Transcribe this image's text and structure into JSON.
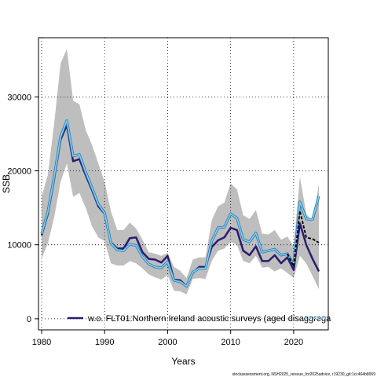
{
  "chart_data": {
    "type": "line",
    "xlabel": "Years",
    "ylabel": "SSB",
    "xlim": [
      1979.5,
      2025.5
    ],
    "ylim": [
      -1500,
      38000
    ],
    "x_ticks": [
      1980,
      1990,
      2000,
      2010,
      2020
    ],
    "y_ticks": [
      0,
      10000,
      20000,
      30000
    ],
    "grid": true,
    "legend_position": "bottom",
    "footer": "stockassessment.org, NSH2025_reissue_for2025advice, r19230_git:1cc464b8069",
    "band": {
      "color": "#bebebe",
      "x": [
        1980,
        1981,
        1982,
        1983,
        1984,
        1985,
        1986,
        1987,
        1988,
        1989,
        1990,
        1991,
        1992,
        1993,
        1994,
        1995,
        1996,
        1997,
        1998,
        1999,
        2000,
        2001,
        2002,
        2003,
        2004,
        2005,
        2006,
        2007,
        2008,
        2009,
        2010,
        2011,
        2012,
        2013,
        2014,
        2015,
        2016,
        2017,
        2018,
        2019,
        2020,
        2021,
        2022,
        2023,
        2024
      ],
      "lower": [
        8200,
        10200,
        13800,
        18500,
        21000,
        16500,
        17000,
        15000,
        12500,
        11000,
        10500,
        7500,
        7200,
        7200,
        7800,
        7500,
        6800,
        6000,
        5600,
        5300,
        5900,
        3800,
        3700,
        3300,
        5400,
        5500,
        5400,
        7800,
        9200,
        9500,
        10400,
        10000,
        7800,
        7500,
        8500,
        6900,
        7000,
        6400,
        6800,
        6200,
        5500,
        8500,
        7500,
        5800,
        4000
      ],
      "upper": [
        16500,
        19500,
        26500,
        34500,
        36500,
        29500,
        29000,
        25500,
        23500,
        21000,
        18500,
        14500,
        12000,
        12000,
        13000,
        12200,
        10700,
        9000,
        8800,
        8500,
        8900,
        7000,
        6500,
        5500,
        8000,
        8300,
        8300,
        13300,
        15200,
        15700,
        18300,
        17500,
        14000,
        13500,
        14700,
        11500,
        11400,
        12000,
        10700,
        11100,
        9800,
        19200,
        14200,
        13100,
        18200
      ]
    },
    "series": [
      {
        "name": "",
        "color": "#2d1a6e",
        "style": "solid",
        "x": [
          1980,
          1981,
          1982,
          1983,
          1984,
          1985,
          1986,
          1987,
          1988,
          1989,
          1990,
          1991,
          1992,
          1993,
          1994,
          1995,
          1996,
          1997,
          1998,
          1999,
          2000,
          2001,
          2002,
          2003,
          2004,
          2005,
          2006,
          2007,
          2008,
          2009,
          2010,
          2011,
          2012,
          2013,
          2014,
          2015,
          2016,
          2017,
          2018,
          2019,
          2020,
          2021,
          2022,
          2023,
          2024
        ],
        "values": [
          11300,
          14200,
          19000,
          24200,
          26200,
          21300,
          21600,
          19400,
          17400,
          15200,
          14200,
          10300,
          9500,
          9500,
          10900,
          11000,
          9000,
          8100,
          8000,
          7600,
          8500,
          5300,
          5200,
          4400,
          6200,
          7000,
          7000,
          9700,
          10600,
          11000,
          12300,
          12000,
          9200,
          8600,
          9800,
          7800,
          7800,
          8600,
          7500,
          8300,
          6600,
          12900,
          10000,
          8100,
          6400
        ]
      },
      {
        "name": "w.o. FLT01:Northern Ireland acoustic surveys (aged disaggrega",
        "color": "#87ceeb",
        "style": "solid",
        "x": [
          1980,
          1981,
          1982,
          1983,
          1984,
          1985,
          1986,
          1987,
          1988,
          1989,
          1990,
          1991,
          1992,
          1993,
          1994,
          1995,
          1996,
          1997,
          1998,
          1999,
          2000,
          2001,
          2002,
          2003,
          2004,
          2005,
          2006,
          2007,
          2008,
          2009,
          2010,
          2011,
          2012,
          2013,
          2014,
          2015,
          2016,
          2017,
          2018,
          2019,
          2020,
          2021,
          2022,
          2023,
          2024
        ],
        "values": [
          11500,
          14500,
          19300,
          24600,
          26800,
          22000,
          22200,
          19800,
          17700,
          15500,
          14300,
          10200,
          9300,
          9200,
          10100,
          9900,
          8400,
          7400,
          7000,
          6900,
          7700,
          5200,
          5000,
          4400,
          6300,
          6800,
          6800,
          10500,
          12300,
          12400,
          14200,
          13600,
          10700,
          10400,
          11600,
          9000,
          9200,
          9400,
          8600,
          8800,
          7300,
          15800,
          13500,
          13400,
          16600
        ]
      },
      {
        "name": "",
        "color": "#000000",
        "style": "dashed",
        "x": [
          2019,
          2020,
          2021,
          2022,
          2023,
          2024
        ],
        "values": [
          8800,
          7100,
          14600,
          11000,
          10800,
          10300
        ]
      }
    ]
  }
}
